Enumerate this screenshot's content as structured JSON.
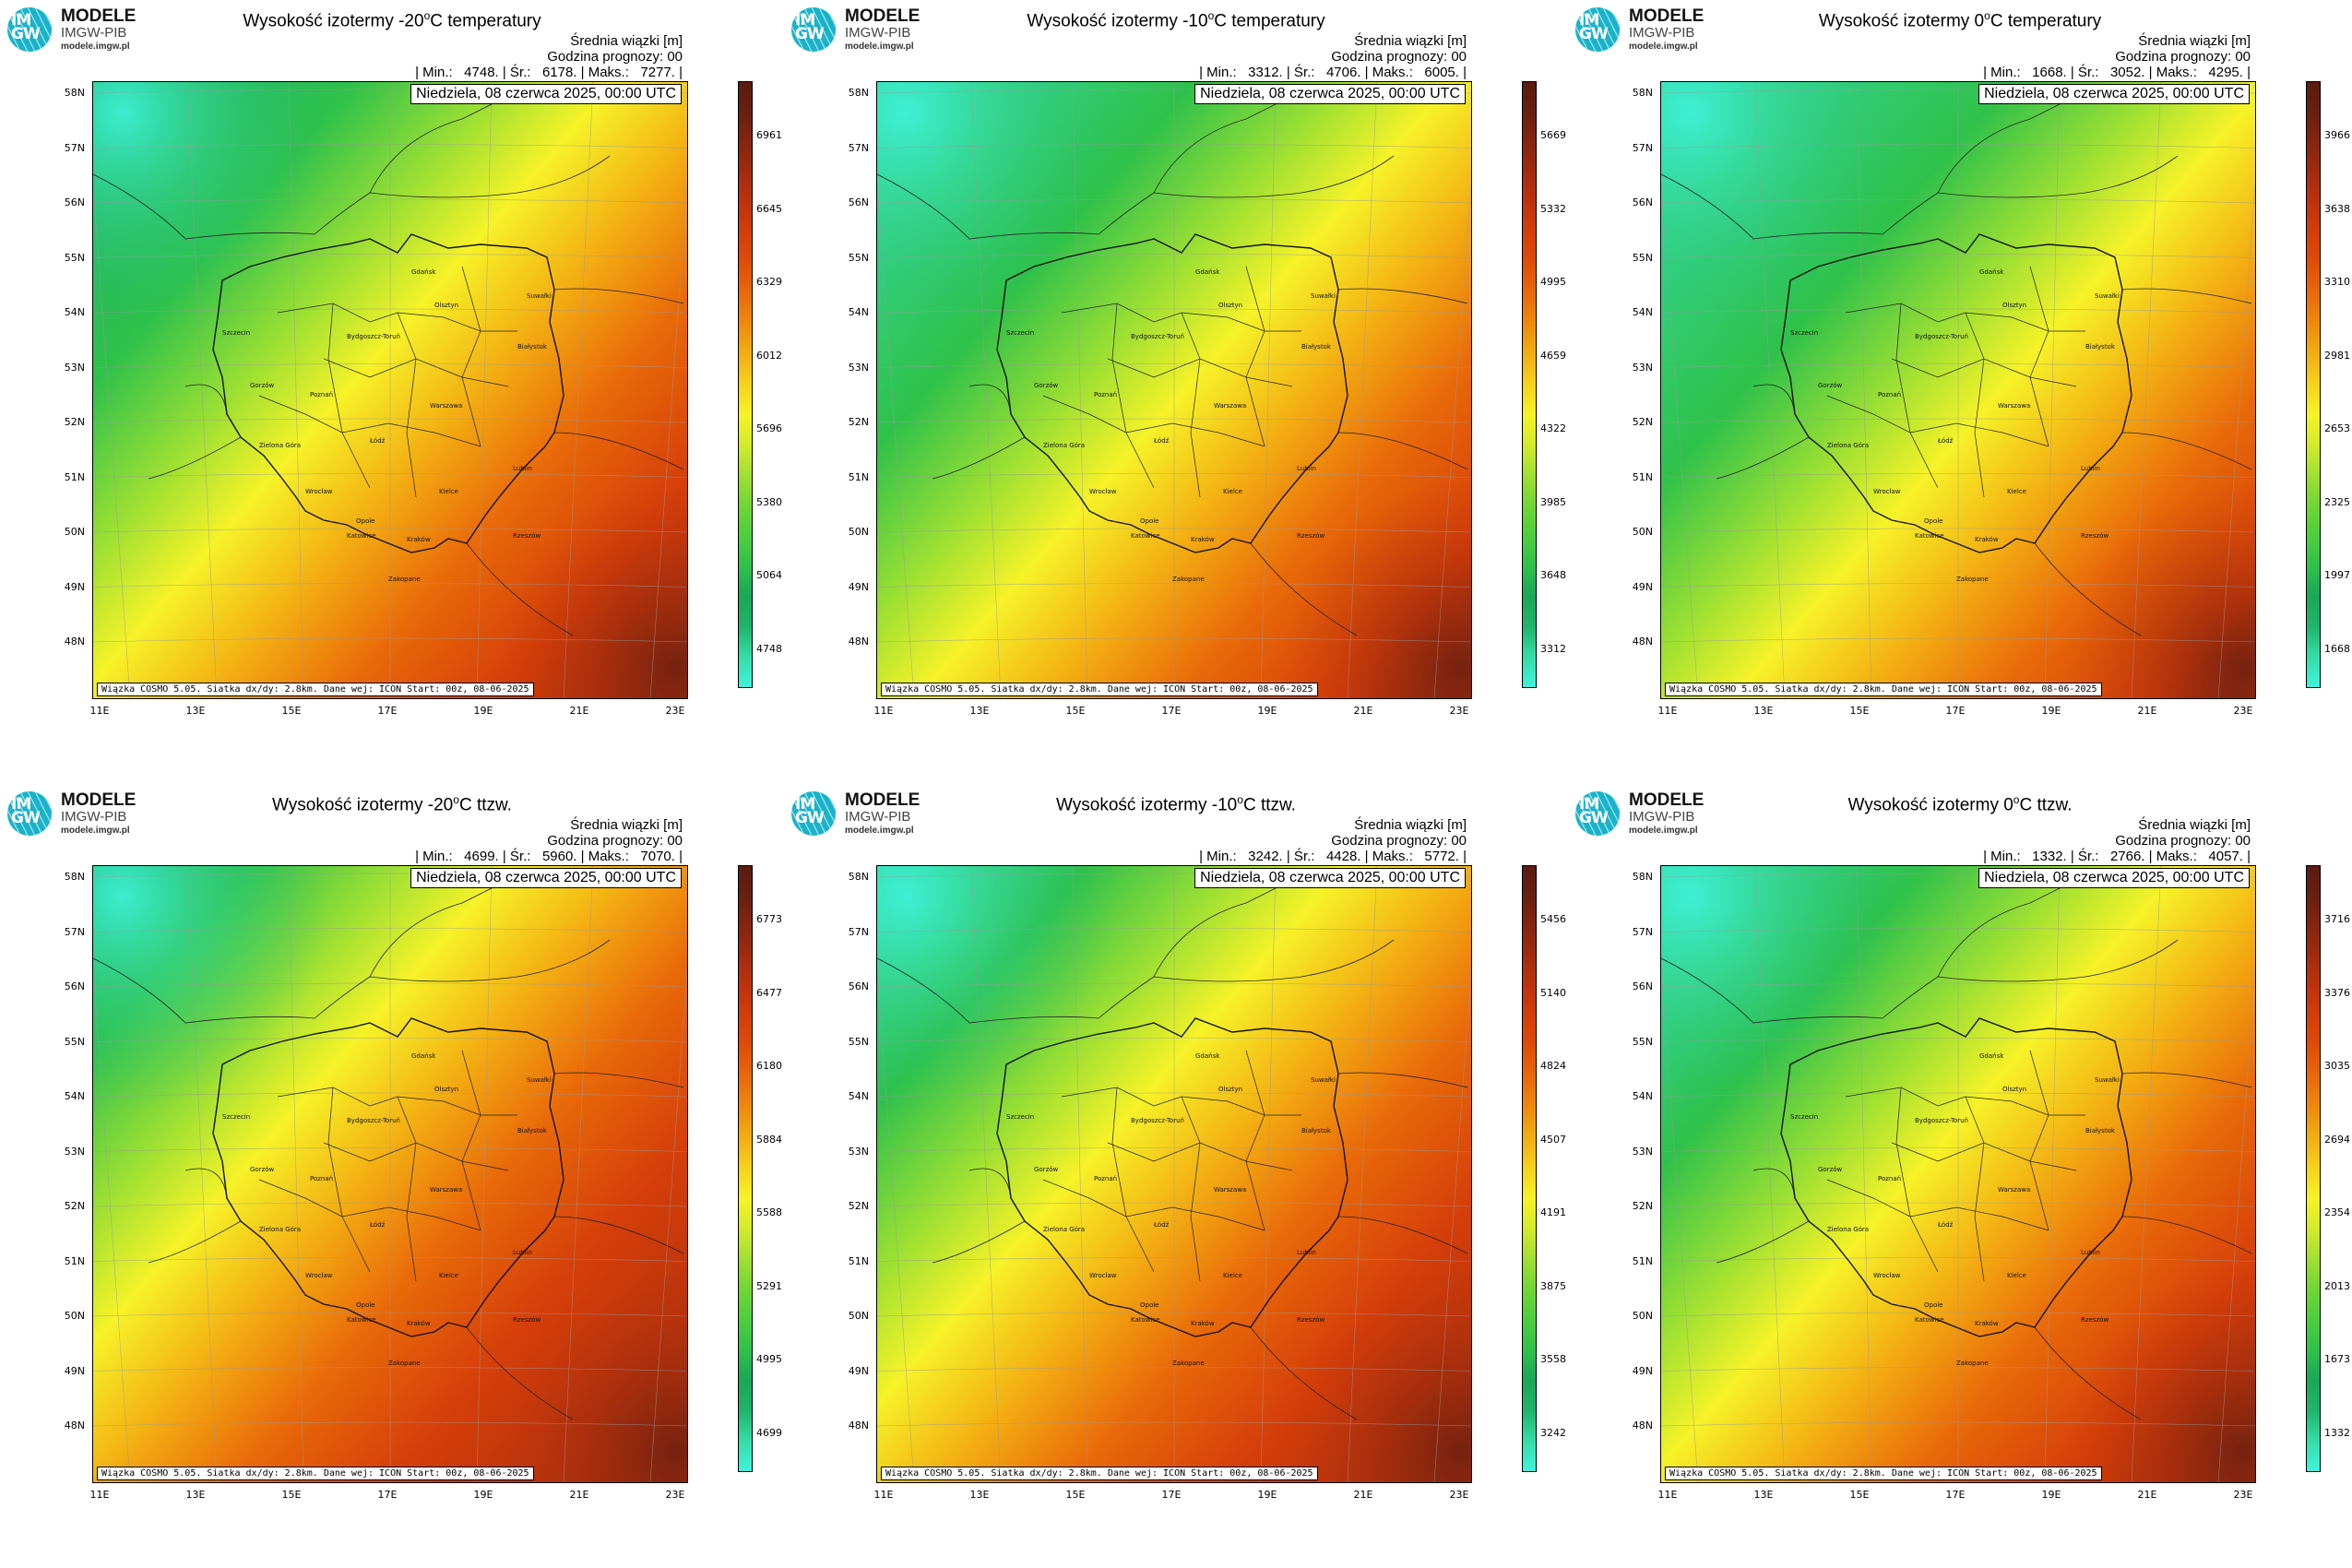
{
  "brand": {
    "line1": "MODELE",
    "line2": "IMGW-PIB",
    "line3": "modele.imgw.pl",
    "logo_text": "IM GW"
  },
  "colors": {
    "scale": [
      "#3ef3dc",
      "#36dca6",
      "#1fb56b",
      "#17a957",
      "#2fc14a",
      "#4ccf3c",
      "#6fd634",
      "#9fe032",
      "#d2ec2c",
      "#f6f228",
      "#f6d21b",
      "#f3ae12",
      "#ee8a0c",
      "#e96a09",
      "#e14e08",
      "#d53e0a",
      "#c0330c",
      "#a32b0e",
      "#86250f",
      "#6a1f10",
      "#5a1b10"
    ]
  },
  "common": {
    "subtitle": "Średnia wiązki [m]",
    "forecast_hour": "Godzina prognozy: 00",
    "date": "Niedziela, 08 czerwca 2025, 00:00 UTC",
    "footer": "Wiązka COSMO 5.05. Siatka dx/dy: 2.8km. Dane wej: ICON Start: 00z, 08-06-2025",
    "lat_labels": [
      "58N",
      "57N",
      "56N",
      "55N",
      "54N",
      "53N",
      "52N",
      "51N",
      "50N",
      "49N",
      "48N"
    ],
    "lon_labels": [
      "11E",
      "13E",
      "15E",
      "17E",
      "19E",
      "21E",
      "23E"
    ],
    "cities": [
      "Gdańsk",
      "Olsztyn",
      "Suwałki",
      "Szczecin",
      "Bydgoszcz-Toruń",
      "Białystok",
      "Gorzów",
      "Poznań",
      "Warszawa",
      "Zielona Góra",
      "Łódź",
      "Lublin",
      "Wrocław",
      "Kielce",
      "Opole",
      "Katowice",
      "Kraków",
      "Rzeszów",
      "Zakopane"
    ]
  },
  "panels": [
    {
      "title_pre": "Wysokość izotermy -20",
      "title_sup": "o",
      "title_post": "C temperatury",
      "stats": "| Min.:   4748. | Śr.:   6178. | Maks.:   7277. |",
      "colorbar": [
        "6961",
        "6645",
        "6329",
        "6012",
        "5696",
        "5380",
        "5064",
        "4748"
      ]
    },
    {
      "title_pre": "Wysokość izotermy -10",
      "title_sup": "o",
      "title_post": "C temperatury",
      "stats": "| Min.:   3312. | Śr.:   4706. | Maks.:   6005. |",
      "colorbar": [
        "5669",
        "5332",
        "4995",
        "4659",
        "4322",
        "3985",
        "3648",
        "3312"
      ]
    },
    {
      "title_pre": "Wysokość izotermy 0",
      "title_sup": "o",
      "title_post": "C temperatury",
      "stats": "| Min.:   1668. | Śr.:   3052. | Maks.:   4295. |",
      "colorbar": [
        "3966",
        "3638",
        "3310",
        "2981",
        "2653",
        "2325",
        "1997",
        "1668"
      ]
    },
    {
      "title_pre": "Wysokość izotermy -20",
      "title_sup": "o",
      "title_post": "C ttzw.",
      "stats": "| Min.:   4699. | Śr.:   5960. | Maks.:   7070. |",
      "colorbar": [
        "6773",
        "6477",
        "6180",
        "5884",
        "5588",
        "5291",
        "4995",
        "4699"
      ]
    },
    {
      "title_pre": "Wysokość izotermy -10",
      "title_sup": "o",
      "title_post": "C ttzw.",
      "stats": "| Min.:   3242. | Śr.:   4428. | Maks.:   5772. |",
      "colorbar": [
        "5456",
        "5140",
        "4824",
        "4507",
        "4191",
        "3875",
        "3558",
        "3242"
      ]
    },
    {
      "title_pre": "Wysokość izotermy 0",
      "title_sup": "o",
      "title_post": "C ttzw.",
      "stats": "| Min.:   1332. | Śr.:   2766. | Maks.:   4057. |",
      "colorbar": [
        "3716",
        "3376",
        "3035",
        "2694",
        "2354",
        "2013",
        "1673",
        "1332"
      ]
    }
  ]
}
